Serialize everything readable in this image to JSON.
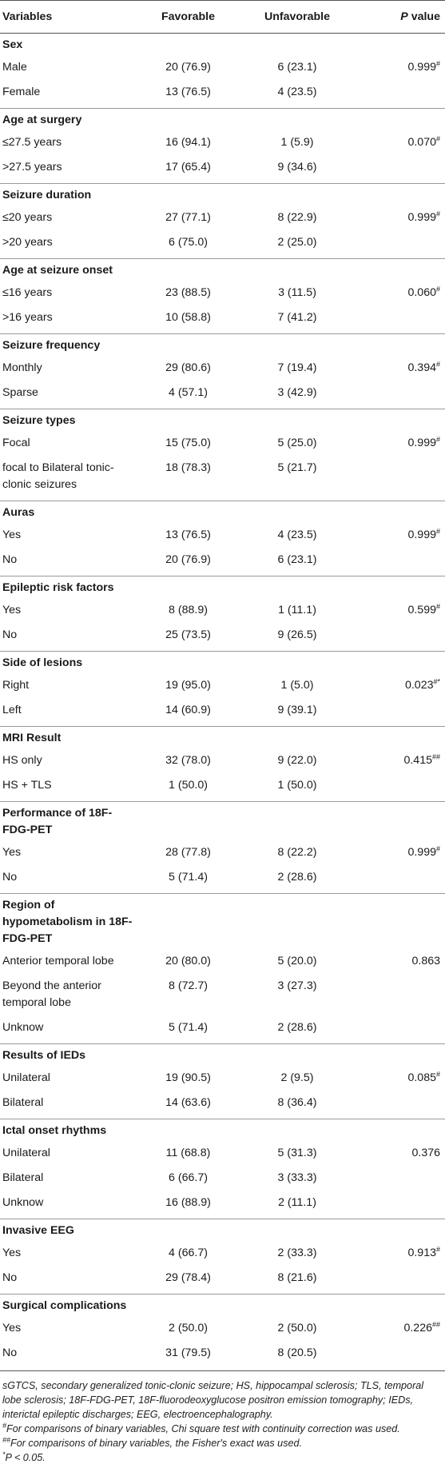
{
  "headers": [
    "Variables",
    "Favorable",
    "Unfavorable",
    "P value"
  ],
  "groups": [
    {
      "title": "Sex",
      "rows": [
        {
          "label": "Male",
          "fav": "20 (76.9)",
          "unfav": "6 (23.1)",
          "p": "0.999",
          "sup": "#"
        },
        {
          "label": "Female",
          "fav": "13 (76.5)",
          "unfav": "4 (23.5)",
          "p": "",
          "sup": ""
        }
      ]
    },
    {
      "title": "Age at surgery",
      "rows": [
        {
          "label": "≤27.5 years",
          "fav": "16 (94.1)",
          "unfav": "1 (5.9)",
          "p": "0.070",
          "sup": "#"
        },
        {
          "label": ">27.5 years",
          "fav": "17 (65.4)",
          "unfav": "9 (34.6)",
          "p": "",
          "sup": ""
        }
      ]
    },
    {
      "title": "Seizure duration",
      "rows": [
        {
          "label": "≤20 years",
          "fav": "27 (77.1)",
          "unfav": "8 (22.9)",
          "p": "0.999",
          "sup": "#"
        },
        {
          "label": ">20 years",
          "fav": "6 (75.0)",
          "unfav": "2 (25.0)",
          "p": "",
          "sup": ""
        }
      ]
    },
    {
      "title": "Age at seizure onset",
      "rows": [
        {
          "label": "≤16 years",
          "fav": "23 (88.5)",
          "unfav": "3 (11.5)",
          "p": "0.060",
          "sup": "#"
        },
        {
          "label": ">16 years",
          "fav": "10 (58.8)",
          "unfav": "7 (41.2)",
          "p": "",
          "sup": ""
        }
      ]
    },
    {
      "title": "Seizure frequency",
      "rows": [
        {
          "label": "Monthly",
          "fav": "29 (80.6)",
          "unfav": "7 (19.4)",
          "p": "0.394",
          "sup": "#"
        },
        {
          "label": "Sparse",
          "fav": "4 (57.1)",
          "unfav": "3 (42.9)",
          "p": "",
          "sup": ""
        }
      ]
    },
    {
      "title": "Seizure types",
      "rows": [
        {
          "label": "Focal",
          "fav": "15 (75.0)",
          "unfav": "5 (25.0)",
          "p": "0.999",
          "sup": "#"
        },
        {
          "label": "focal to Bilateral tonic-clonic seizures",
          "fav": "18 (78.3)",
          "unfav": "5 (21.7)",
          "p": "",
          "sup": ""
        }
      ]
    },
    {
      "title": "Auras",
      "rows": [
        {
          "label": "Yes",
          "fav": "13 (76.5)",
          "unfav": "4 (23.5)",
          "p": "0.999",
          "sup": "#"
        },
        {
          "label": "No",
          "fav": "20 (76.9)",
          "unfav": "6 (23.1)",
          "p": "",
          "sup": ""
        }
      ]
    },
    {
      "title": "Epileptic risk factors",
      "rows": [
        {
          "label": "Yes",
          "fav": "8 (88.9)",
          "unfav": "1 (11.1)",
          "p": "0.599",
          "sup": "#"
        },
        {
          "label": "No",
          "fav": "25 (73.5)",
          "unfav": "9 (26.5)",
          "p": "",
          "sup": ""
        }
      ]
    },
    {
      "title": "Side of lesions",
      "rows": [
        {
          "label": "Right",
          "fav": "19 (95.0)",
          "unfav": "1 (5.0)",
          "p": "0.023",
          "sup": "#*"
        },
        {
          "label": "Left",
          "fav": "14 (60.9)",
          "unfav": "9 (39.1)",
          "p": "",
          "sup": ""
        }
      ]
    },
    {
      "title": "MRI Result",
      "rows": [
        {
          "label": "HS only",
          "fav": "32 (78.0)",
          "unfav": "9 (22.0)",
          "p": "0.415",
          "sup": "##"
        },
        {
          "label": "HS + TLS",
          "fav": "1 (50.0)",
          "unfav": "1 (50.0)",
          "p": "",
          "sup": ""
        }
      ]
    },
    {
      "title": "Performance of 18F-FDG-PET",
      "rows": [
        {
          "label": "Yes",
          "fav": "28 (77.8)",
          "unfav": "8 (22.2)",
          "p": "0.999",
          "sup": "#"
        },
        {
          "label": "No",
          "fav": "5 (71.4)",
          "unfav": "2 (28.6)",
          "p": "",
          "sup": ""
        }
      ]
    },
    {
      "title": "Region of hypometabolism in 18F-FDG-PET",
      "rows": [
        {
          "label": "Anterior temporal lobe",
          "fav": "20 (80.0)",
          "unfav": "5 (20.0)",
          "p": "0.863",
          "sup": ""
        },
        {
          "label": "Beyond the anterior temporal lobe",
          "fav": "8 (72.7)",
          "unfav": "3 (27.3)",
          "p": "",
          "sup": ""
        },
        {
          "label": "Unknow",
          "fav": "5 (71.4)",
          "unfav": "2 (28.6)",
          "p": "",
          "sup": ""
        }
      ]
    },
    {
      "title": "Results of IEDs",
      "rows": [
        {
          "label": "Unilateral",
          "fav": "19 (90.5)",
          "unfav": "2 (9.5)",
          "p": "0.085",
          "sup": "#"
        },
        {
          "label": "Bilateral",
          "fav": "14 (63.6)",
          "unfav": "8 (36.4)",
          "p": "",
          "sup": ""
        }
      ]
    },
    {
      "title": "Ictal onset rhythms",
      "rows": [
        {
          "label": "Unilateral",
          "fav": "11 (68.8)",
          "unfav": "5 (31.3)",
          "p": "0.376",
          "sup": ""
        },
        {
          "label": "Bilateral",
          "fav": "6 (66.7)",
          "unfav": "3 (33.3)",
          "p": "",
          "sup": ""
        },
        {
          "label": "Unknow",
          "fav": "16 (88.9)",
          "unfav": "2 (11.1)",
          "p": "",
          "sup": ""
        }
      ]
    },
    {
      "title": "Invasive EEG",
      "rows": [
        {
          "label": "Yes",
          "fav": "4 (66.7)",
          "unfav": "2 (33.3)",
          "p": "0.913",
          "sup": "#"
        },
        {
          "label": "No",
          "fav": "29 (78.4)",
          "unfav": "8 (21.6)",
          "p": "",
          "sup": ""
        }
      ]
    },
    {
      "title": "Surgical complications",
      "rows": [
        {
          "label": "Yes",
          "fav": "2 (50.0)",
          "unfav": "2 (50.0)",
          "p": "0.226",
          "sup": "##"
        },
        {
          "label": "No",
          "fav": "31 (79.5)",
          "unfav": "8 (20.5)",
          "p": "",
          "sup": ""
        }
      ]
    }
  ],
  "footnotes": {
    "abbrev": "sGTCS, secondary generalized tonic-clonic seizure; HS, hippocampal sclerosis; TLS, temporal lobe sclerosis; 18F-FDG-PET, 18F-fluorodeoxyglucose positron emission tomography; IEDs, interictal epileptic discharges; EEG, electroencephalography.",
    "note1_mark": "#",
    "note1": "For comparisons of binary variables, Chi square test with continuity correction was used.",
    "note2_mark": "##",
    "note2": "For comparisons of binary variables, the Fisher's exact was used.",
    "note3_mark": "*",
    "note3": "P < 0.05."
  }
}
